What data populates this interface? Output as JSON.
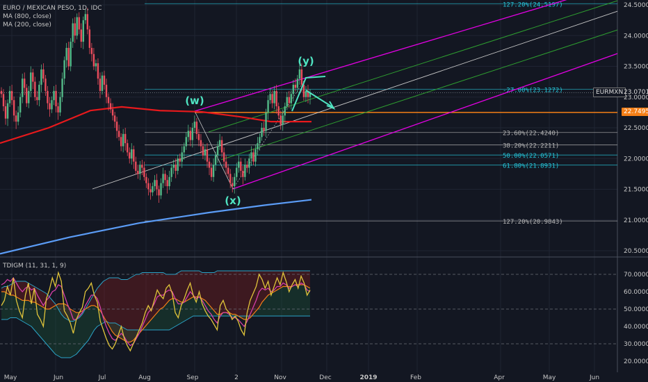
{
  "colors": {
    "background": "#131722",
    "up_candle": "#53b987",
    "down_candle": "#eb4d5c",
    "ma800": "#5b9cf6",
    "ma200": "#e8191c",
    "fib": "#b7b7b7",
    "fib_cyan": "#26c6da",
    "pitchfork_outer": "#e500e5",
    "pitchfork_inner": "#2e9e30",
    "median": "#c8c8c8",
    "orange_line": "#f57f17",
    "wave_label": "#4fe3c1",
    "rsi": "#e0c43a",
    "bands": "#2ba4c8",
    "signal_pink": "#d63fa8"
  },
  "header": {
    "title": "EURO / MEXICAN PESO, 1D, IDC",
    "ma800": "MA (800, close)",
    "ma200": "MA (200, close)"
  },
  "indicator": {
    "title": "TDIGM (11, 31, 1, 9)"
  },
  "price_tag": {
    "symbol": "EURMXN",
    "value": "23.0701"
  },
  "level_tag": {
    "value": "22.7495"
  },
  "wave_labels": [
    "(w)",
    "(x)",
    "(y)"
  ],
  "fib_levels": [
    {
      "label": "127.20%(24.5197)",
      "value": 24.5197,
      "color": "cyan"
    },
    {
      "label": "-27.00%(23.1272)",
      "value": 23.1272,
      "color": "cyan"
    },
    {
      "label": "23.60%(22.4240)",
      "value": 22.424,
      "color": "gray"
    },
    {
      "label": "38.20%(22.2211)",
      "value": 22.2211,
      "color": "gray"
    },
    {
      "label": "50.00%(22.0571)",
      "value": 22.0571,
      "color": "cyan"
    },
    {
      "label": "61.80%(21.8931)",
      "value": 21.8931,
      "color": "cyan"
    },
    {
      "label": "127.20%(20.9843)",
      "value": 20.9843,
      "color": "gray"
    }
  ],
  "price_axis": [
    "24.5000",
    "24.0000",
    "23.5000",
    "23.0000",
    "22.5000",
    "22.0000",
    "21.5000",
    "21.0000",
    "20.5000"
  ],
  "indicator_axis": [
    "70.0000",
    "60.0000",
    "50.0000",
    "40.0000",
    "30.0000",
    "20.0000"
  ],
  "time_axis": [
    "May",
    "Jun",
    "Jul",
    "Aug",
    "Sep",
    "2",
    "Nov",
    "Dec",
    "2019",
    "Feb",
    "Apr",
    "May",
    "Jun"
  ],
  "chart_data": {
    "type": "candlestick",
    "title": "EURO / MEXICAN PESO, 1D, IDC",
    "ylim": [
      20.38,
      24.58
    ],
    "closes": [
      23.05,
      22.85,
      22.65,
      22.9,
      23.1,
      22.95,
      22.7,
      22.6,
      22.75,
      23.0,
      23.3,
      23.15,
      22.9,
      23.1,
      23.4,
      23.25,
      23.0,
      22.95,
      23.2,
      23.45,
      23.3,
      23.1,
      22.9,
      22.8,
      22.95,
      23.1,
      22.85,
      22.75,
      23.0,
      23.3,
      23.6,
      23.8,
      23.5,
      23.9,
      24.2,
      24.0,
      24.3,
      24.1,
      23.9,
      24.25,
      24.35,
      24.1,
      23.8,
      23.7,
      23.5,
      23.55,
      23.3,
      23.1,
      23.35,
      23.2,
      23.0,
      22.9,
      22.8,
      22.7,
      22.6,
      22.45,
      22.35,
      22.2,
      22.4,
      22.25,
      22.1,
      22.0,
      22.15,
      21.95,
      21.8,
      21.75,
      21.9,
      21.85,
      21.7,
      21.6,
      21.5,
      21.45,
      21.55,
      21.65,
      21.5,
      21.4,
      21.6,
      21.75,
      21.65,
      21.55,
      21.7,
      21.85,
      21.9,
      21.8,
      22.0,
      21.95,
      22.1,
      22.2,
      22.35,
      22.45,
      22.3,
      22.5,
      22.6,
      22.4,
      22.3,
      22.2,
      22.05,
      22.15,
      21.95,
      21.85,
      21.7,
      21.9,
      22.05,
      22.2,
      22.3,
      22.1,
      21.95,
      21.85,
      21.75,
      21.6,
      21.55,
      21.7,
      21.85,
      21.95,
      21.8,
      21.7,
      21.9,
      21.85,
      22.0,
      22.1,
      21.95,
      22.15,
      22.25,
      22.35,
      22.5,
      22.45,
      22.75,
      22.95,
      23.05,
      22.9,
      23.1,
      22.85,
      22.7,
      22.55,
      22.7,
      22.85,
      23.0,
      22.9,
      23.05,
      23.2,
      23.15,
      23.3,
      23.45,
      23.2,
      23.0,
      23.1,
      23.0,
      23.07
    ],
    "ma200": [
      [
        0,
        22.25
      ],
      [
        70,
        22.5
      ],
      [
        130,
        22.78
      ],
      [
        175,
        22.84
      ],
      [
        230,
        22.78
      ],
      [
        290,
        22.76
      ],
      [
        345,
        22.68
      ],
      [
        390,
        22.6
      ],
      [
        448,
        22.6
      ]
    ],
    "ma800": [
      [
        0,
        20.45
      ],
      [
        100,
        20.72
      ],
      [
        200,
        20.95
      ],
      [
        300,
        21.12
      ],
      [
        380,
        21.24
      ],
      [
        448,
        21.33
      ]
    ],
    "series": [
      {
        "name": "MA (800, close)",
        "color": "#5b9cf6"
      },
      {
        "name": "MA (200, close)",
        "color": "#e8191c"
      }
    ],
    "indicator": {
      "ylim": [
        17,
        76
      ],
      "levels": [
        70,
        50,
        30
      ],
      "rsi": [
        52,
        55,
        63,
        58,
        68,
        55,
        49,
        45,
        58,
        65,
        53,
        62,
        47,
        44,
        40,
        56,
        61,
        68,
        63,
        71,
        66,
        49,
        46,
        42,
        36,
        44,
        48,
        51,
        60,
        62,
        65,
        58,
        54,
        43,
        38,
        33,
        29,
        27,
        30,
        35,
        40,
        33,
        29,
        26,
        30,
        34,
        38,
        42,
        48,
        52,
        49,
        55,
        61,
        58,
        56,
        62,
        64,
        59,
        48,
        45,
        52,
        56,
        61,
        65,
        58,
        54,
        60,
        53,
        49,
        46,
        44,
        41,
        38,
        52,
        55,
        50,
        48,
        44,
        46,
        43,
        38,
        35,
        48,
        55,
        59,
        63,
        70,
        67,
        62,
        66,
        58,
        63,
        68,
        64,
        71,
        66,
        60,
        64,
        67,
        62,
        69,
        65,
        58,
        61
      ],
      "upper": [
        62,
        63,
        63,
        64,
        65,
        66,
        66,
        66,
        66,
        65,
        64,
        63,
        62,
        61,
        60,
        59,
        57,
        55,
        53,
        50,
        47,
        45,
        44,
        43,
        43,
        44,
        45,
        47,
        50,
        53,
        56,
        59,
        62,
        64,
        66,
        67,
        68,
        68,
        68,
        68,
        67,
        67,
        67,
        68,
        69,
        70,
        70,
        71,
        71,
        71,
        71,
        71,
        71,
        71,
        71,
        70,
        70,
        70,
        70,
        71,
        72,
        72,
        72,
        72,
        72,
        72,
        72,
        71,
        71,
        71,
        71,
        71,
        72,
        72,
        72,
        72,
        72,
        72,
        72,
        72,
        72,
        72,
        72,
        72,
        72,
        72,
        72,
        72,
        72,
        72,
        72,
        72,
        72,
        72,
        72,
        72,
        72,
        72,
        72,
        72,
        72,
        72,
        72,
        72
      ],
      "lower": [
        44,
        44,
        44,
        45,
        45,
        45,
        44,
        43,
        42,
        41,
        40,
        38,
        36,
        34,
        32,
        30,
        28,
        26,
        24,
        23,
        22,
        22,
        22,
        22,
        23,
        24,
        26,
        28,
        30,
        32,
        35,
        38,
        40,
        41,
        42,
        43,
        42,
        42,
        42,
        41,
        40,
        39,
        38,
        38,
        38,
        38,
        38,
        38,
        38,
        38,
        38,
        38,
        38,
        38,
        38,
        38,
        38,
        39,
        40,
        41,
        42,
        43,
        44,
        45,
        46,
        46,
        46,
        46,
        46,
        46,
        46,
        46,
        46,
        46,
        46,
        46,
        46,
        46,
        46,
        46,
        46,
        46,
        46,
        46,
        46,
        46,
        46,
        46,
        46,
        46,
        46,
        46,
        46,
        46,
        46,
        46,
        46,
        46,
        46,
        46,
        46,
        46,
        46,
        46
      ],
      "signal": [
        60,
        60,
        59,
        58,
        58,
        57,
        56,
        55,
        55,
        55,
        54,
        54,
        53,
        52,
        51,
        50,
        50,
        51,
        52,
        53,
        53,
        53,
        52,
        50,
        49,
        48,
        48,
        49,
        50,
        51,
        52,
        52,
        51,
        49,
        46,
        43,
        40,
        37,
        35,
        34,
        33,
        32,
        31,
        31,
        32,
        34,
        36,
        38,
        40,
        42,
        44,
        46,
        48,
        50,
        51,
        53,
        55,
        56,
        56,
        55,
        54,
        54,
        55,
        56,
        57,
        57,
        57,
        56,
        55,
        53,
        51,
        49,
        47,
        47,
        48,
        48,
        48,
        47,
        47,
        46,
        45,
        44,
        44,
        45,
        47,
        49,
        51,
        54,
        56,
        58,
        59,
        60,
        61,
        62,
        63,
        63,
        63,
        63,
        64,
        64,
        64,
        64,
        63,
        62
      ],
      "pink": [
        64,
        65,
        67,
        66,
        68,
        65,
        62,
        60,
        62,
        63,
        61,
        62,
        58,
        55,
        52,
        55,
        57,
        60,
        61,
        64,
        63,
        58,
        53,
        49,
        44,
        44,
        46,
        48,
        52,
        55,
        58,
        58,
        56,
        51,
        45,
        40,
        36,
        33,
        32,
        34,
        36,
        34,
        31,
        29,
        30,
        33,
        36,
        40,
        44,
        48,
        50,
        53,
        57,
        58,
        58,
        60,
        61,
        60,
        56,
        53,
        53,
        54,
        57,
        60,
        58,
        56,
        57,
        55,
        52,
        49,
        47,
        44,
        42,
        46,
        48,
        48,
        47,
        45,
        45,
        44,
        42,
        40,
        43,
        47,
        51,
        55,
        60,
        62,
        61,
        62,
        60,
        61,
        63,
        63,
        65,
        64,
        62,
        63,
        64,
        63,
        65,
        64,
        61,
        60
      ]
    }
  }
}
